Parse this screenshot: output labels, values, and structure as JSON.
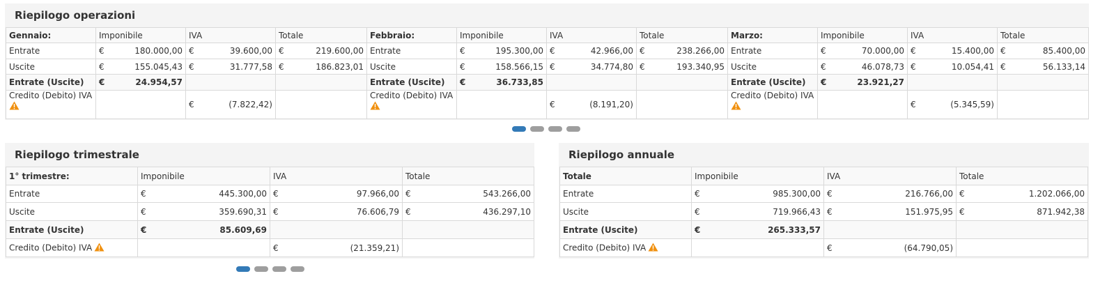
{
  "currency": "€",
  "colors": {
    "active_dot": "#337ab7",
    "inactive_dot": "#9e9e9e",
    "warning": "#f0900f"
  },
  "operations": {
    "title": "Riepilogo operazioni",
    "months": [
      {
        "label": "Gennaio:",
        "headers": [
          "Imponibile",
          "IVA",
          "Totale"
        ],
        "rows": [
          {
            "label": "Entrate",
            "imponibile": "180.000,00",
            "iva": "39.600,00",
            "totale": "219.600,00"
          },
          {
            "label": "Uscite",
            "imponibile": "155.045,43",
            "iva": "31.777,58",
            "totale": "186.823,01"
          }
        ],
        "net_label": "Entrate (Uscite)",
        "net_value": "24.954,57",
        "credit_label": "Credito (Debito) IVA",
        "credit_value": "(7.822,42)"
      },
      {
        "label": "Febbraio:",
        "headers": [
          "Imponibile",
          "IVA",
          "Totale"
        ],
        "rows": [
          {
            "label": "Entrate",
            "imponibile": "195.300,00",
            "iva": "42.966,00",
            "totale": "238.266,00"
          },
          {
            "label": "Uscite",
            "imponibile": "158.566,15",
            "iva": "34.774,80",
            "totale": "193.340,95"
          }
        ],
        "net_label": "Entrate (Uscite)",
        "net_value": "36.733,85",
        "credit_label": "Credito (Debito) IVA",
        "credit_value": "(8.191,20)"
      },
      {
        "label": "Marzo:",
        "headers": [
          "Imponibile",
          "IVA",
          "Totale"
        ],
        "rows": [
          {
            "label": "Entrate",
            "imponibile": "70.000,00",
            "iva": "15.400,00",
            "totale": "85.400,00"
          },
          {
            "label": "Uscite",
            "imponibile": "46.078,73",
            "iva": "10.054,41",
            "totale": "56.133,14"
          }
        ],
        "net_label": "Entrate (Uscite)",
        "net_value": "23.921,27",
        "credit_label": "Credito (Debito) IVA",
        "credit_value": "(5.345,59)"
      }
    ],
    "pager": {
      "count": 4,
      "active": 0
    }
  },
  "quarterly": {
    "title": "Riepilogo trimestrale",
    "label": "1° trimestre:",
    "headers": [
      "Imponibile",
      "IVA",
      "Totale"
    ],
    "rows": [
      {
        "label": "Entrate",
        "imponibile": "445.300,00",
        "iva": "97.966,00",
        "totale": "543.266,00"
      },
      {
        "label": "Uscite",
        "imponibile": "359.690,31",
        "iva": "76.606,79",
        "totale": "436.297,10"
      }
    ],
    "net_label": "Entrate (Uscite)",
    "net_value": "85.609,69",
    "credit_label": "Credito (Debito) IVA",
    "credit_value": "(21.359,21)",
    "pager": {
      "count": 4,
      "active": 0
    }
  },
  "annual": {
    "title": "Riepilogo annuale",
    "label": "Totale",
    "headers": [
      "Imponibile",
      "IVA",
      "Totale"
    ],
    "rows": [
      {
        "label": "Entrate",
        "imponibile": "985.300,00",
        "iva": "216.766,00",
        "totale": "1.202.066,00"
      },
      {
        "label": "Uscite",
        "imponibile": "719.966,43",
        "iva": "151.975,95",
        "totale": "871.942,38"
      }
    ],
    "net_label": "Entrate (Uscite)",
    "net_value": "265.333,57",
    "credit_label": "Credito (Debito) IVA",
    "credit_value": "(64.790,05)"
  }
}
